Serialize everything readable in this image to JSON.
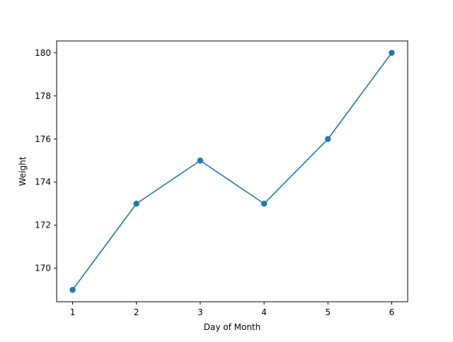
{
  "chart_data": {
    "type": "line",
    "title": "",
    "xlabel": "Day of Month",
    "ylabel": "Weight",
    "x": [
      1,
      2,
      3,
      4,
      5,
      6
    ],
    "series": [
      {
        "values": [
          169,
          173,
          175,
          173,
          176,
          180
        ],
        "color": "#1f77b4",
        "marker": "circle"
      }
    ],
    "xlim": [
      0.75,
      6.25
    ],
    "ylim": [
      168.45,
      180.55
    ],
    "xticks": [
      1,
      2,
      3,
      4,
      5,
      6
    ],
    "yticks": [
      170,
      172,
      174,
      176,
      178,
      180
    ],
    "grid": false,
    "legend": "none"
  }
}
